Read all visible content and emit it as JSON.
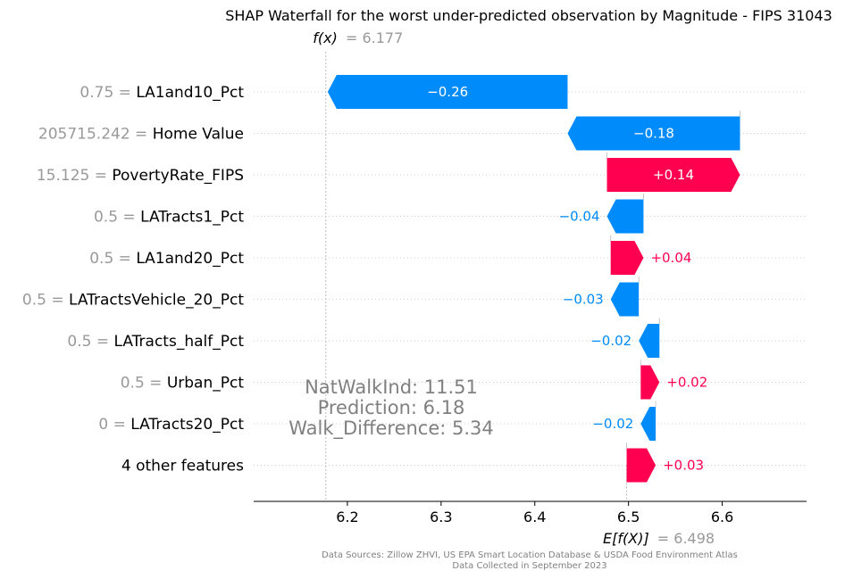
{
  "chart_data": {
    "type": "waterfall",
    "title": "SHAP Waterfall for the worst under-predicted observation by Magnitude - FIPS 31043",
    "fx": {
      "label": "f(x)",
      "value_text": "= 6.177",
      "value": 6.177
    },
    "efx": {
      "label": "E[f(X)]",
      "value_text": "= 6.498",
      "value": 6.498
    },
    "xlim": [
      6.1,
      6.69
    ],
    "xticks": [
      "6.2",
      "6.3",
      "6.4",
      "6.5",
      "6.6"
    ],
    "xtick_values": [
      6.2,
      6.3,
      6.4,
      6.5,
      6.6
    ],
    "features": [
      {
        "value": "0.75 =",
        "name": "LA1and10_Pct",
        "shap": -0.256,
        "label": "−0.26"
      },
      {
        "value": "205715.242 =",
        "name": "Home Value",
        "shap": -0.184,
        "label": "−0.18"
      },
      {
        "value": "15.125 =",
        "name": "PovertyRate_FIPS",
        "shap": 0.142,
        "label": "+0.14"
      },
      {
        "value": "0.5 =",
        "name": "LATracts1_Pct",
        "shap": -0.039,
        "label": "−0.04"
      },
      {
        "value": "0.5 =",
        "name": "LA1and20_Pct",
        "shap": 0.035,
        "label": "+0.04"
      },
      {
        "value": "0.5 =",
        "name": "LATractsVehicle_20_Pct",
        "shap": -0.03,
        "label": "−0.03"
      },
      {
        "value": "0.5 =",
        "name": "LATracts_half_Pct",
        "shap": -0.022,
        "label": "−0.02"
      },
      {
        "value": "0.5 =",
        "name": "Urban_Pct",
        "shap": 0.02,
        "label": "+0.02"
      },
      {
        "value": "0 =",
        "name": "LATracts20_Pct",
        "shap": -0.016,
        "label": "−0.02"
      },
      {
        "value": "",
        "name": "4 other features",
        "shap": 0.031,
        "label": "+0.03"
      }
    ],
    "colors": {
      "positive": "#ff0051",
      "negative": "#008bfb"
    },
    "annotation": [
      "NatWalkInd:  11.51",
      "Prediction:  6.18",
      "Walk_Difference:  5.34"
    ],
    "source_lines": [
      "Data Sources: Zillow ZHVI, US EPA Smart Location Database & USDA Food Environment Atlas",
      "Data Collected in September 2023"
    ]
  }
}
